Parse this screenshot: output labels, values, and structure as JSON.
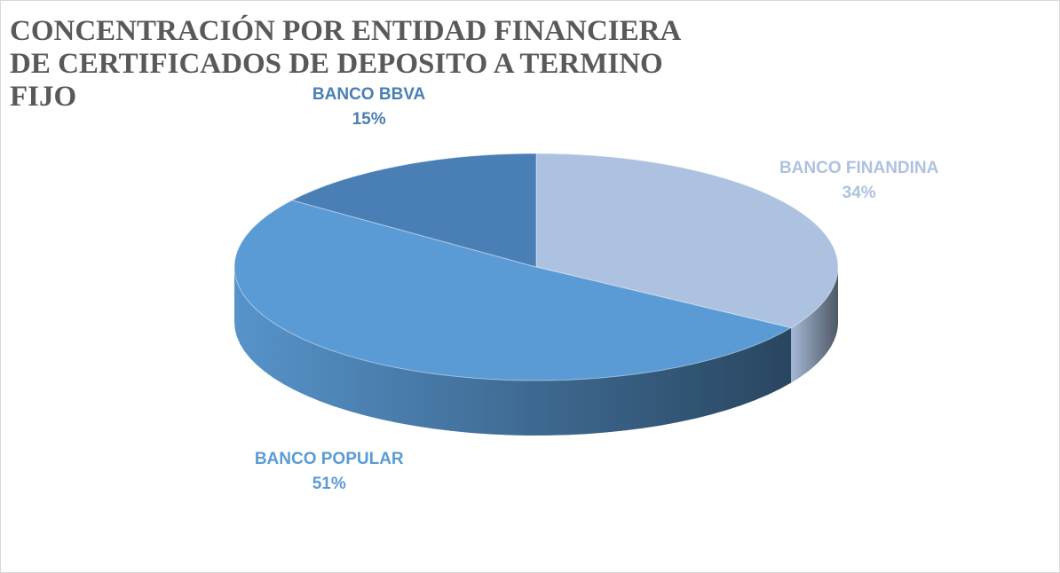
{
  "chart_data": {
    "type": "pie",
    "title": "CONCENTRACIÓN POR ENTIDAD FINANCIERA DE CERTIFICADOS DE DEPOSITO A TERMINO FIJO",
    "categories": [
      "BANCO FINANDINA",
      "BANCO POPULAR",
      "BANCO BBVA"
    ],
    "values": [
      34,
      51,
      15
    ],
    "value_labels": [
      "34%",
      "51%",
      "15%"
    ],
    "colors": [
      "#adc2e0",
      "#5b9bd5",
      "#4a7fb5"
    ]
  }
}
